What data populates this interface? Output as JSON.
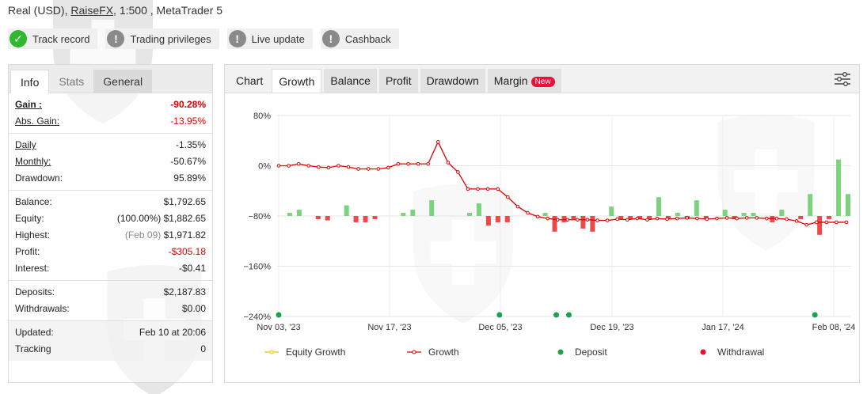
{
  "header": {
    "account_type": "Real (USD),",
    "broker": "RaiseFX",
    "leverage_platform": ", 1:500 , MetaTrader 5"
  },
  "badges": [
    {
      "label": "Track record",
      "icon": "check-icon",
      "color": "#2eb82e"
    },
    {
      "label": "Trading privileges",
      "icon": "exclamation-icon",
      "color": "#8a8a8a"
    },
    {
      "label": "Live update",
      "icon": "exclamation-icon",
      "color": "#8a8a8a"
    },
    {
      "label": "Cashback",
      "icon": "exclamation-icon",
      "color": "#8a8a8a"
    }
  ],
  "left_tabs": {
    "info": "Info",
    "stats": "Stats",
    "general": "General"
  },
  "stats": {
    "gain": {
      "label": "Gain :",
      "value": "-90.28%"
    },
    "abs_gain": {
      "label": "Abs. Gain:",
      "value": "-13.95%"
    },
    "daily": {
      "label": "Daily",
      "value": "-1.35%"
    },
    "monthly": {
      "label": "Monthly:",
      "value": "-50.67%"
    },
    "drawdown": {
      "label": "Drawdown:",
      "value": "95.89%"
    },
    "balance": {
      "label": "Balance:",
      "value": "$1,792.65"
    },
    "equity": {
      "label": "Equity:",
      "pct": "(100.00%)",
      "value": "$1,882.65"
    },
    "highest": {
      "label": "Highest:",
      "date": "(Feb 09)",
      "value": "$1,971.82"
    },
    "profit": {
      "label": "Profit:",
      "value": "-$305.18"
    },
    "interest": {
      "label": "Interest:",
      "value": "-$0.41"
    },
    "deposits": {
      "label": "Deposits:",
      "value": "$2,187.83"
    },
    "withdrawals": {
      "label": "Withdrawals:",
      "value": "$0.00"
    },
    "updated": {
      "label": "Updated:",
      "value": "Feb 10 at 20:06"
    },
    "tracking": {
      "label": "Tracking",
      "value": "0"
    }
  },
  "chart_tabs": {
    "chart": "Chart",
    "growth": "Growth",
    "balance": "Balance",
    "profit": "Profit",
    "drawdown": "Drawdown",
    "margin": "Margin",
    "new_badge": "New"
  },
  "colors": {
    "growth_line": "#e00000",
    "equity_line": "#f2c200",
    "bar_positive": "#7dd37d",
    "bar_negative": "#f04848",
    "deposit": "#1aa34a",
    "withdrawal": "#e8112d"
  },
  "chart_data": {
    "type": "line",
    "x_tick_labels": [
      "Nov 03, '23",
      "Nov 17, '23",
      "Dec 05, '23",
      "Dec 19, '23",
      "Jan 17, '24",
      "Feb 08, '24"
    ],
    "y_tick_labels": [
      "80%",
      "0%",
      "−80%",
      "−160%",
      "−240%"
    ],
    "ylim": [
      -240,
      80
    ],
    "grid": true,
    "legend_position": "bottom",
    "legend": [
      {
        "name": "Equity Growth",
        "color": "#f2c200"
      },
      {
        "name": "Growth",
        "color": "#e00000"
      },
      {
        "name": "Deposit",
        "color": "#1aa34a"
      },
      {
        "name": "Withdrawal",
        "color": "#e8112d"
      }
    ],
    "growth": [
      0,
      0,
      3,
      0,
      -2,
      -3,
      0,
      -2,
      -5,
      -5,
      -5,
      -3,
      3,
      3,
      3,
      3,
      38,
      5,
      -10,
      -37,
      -37,
      -37,
      -37,
      -50,
      -65,
      -75,
      -81,
      -84,
      -86,
      -86,
      -86,
      -86,
      -87,
      -87,
      -85,
      -86,
      -84,
      -86,
      -84,
      -85,
      -84,
      -83,
      -84,
      -85,
      -84,
      -83,
      -84,
      -83,
      -83,
      -84,
      -84,
      -85,
      -88,
      -94,
      -90,
      -90,
      -90,
      -90
    ],
    "bars": [
      0,
      5,
      10,
      0,
      -5,
      -7,
      0,
      17,
      -10,
      -10,
      -5,
      0,
      0,
      5,
      10,
      0,
      25,
      0,
      0,
      0,
      5,
      20,
      -15,
      -10,
      -10,
      0,
      0,
      0,
      5,
      -25,
      -10,
      -5,
      -20,
      -25,
      0,
      15,
      -5,
      -5,
      -5,
      -5,
      30,
      -5,
      5,
      -5,
      25,
      -5,
      0,
      10,
      -5,
      5,
      5,
      0,
      -10,
      10,
      0,
      -5,
      35,
      -30,
      -5,
      90,
      35
    ],
    "deposit_indices": [
      0,
      35,
      44,
      46,
      85
    ]
  }
}
